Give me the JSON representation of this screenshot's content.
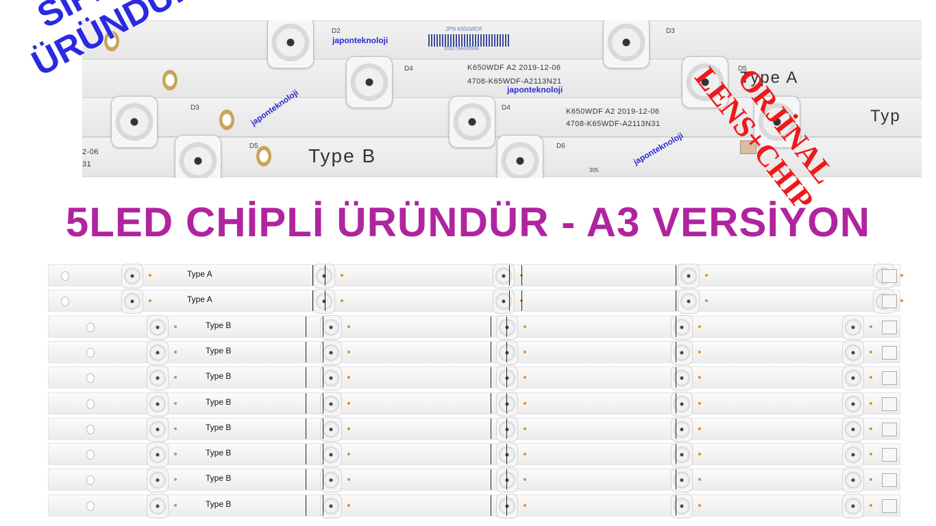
{
  "overlay": {
    "left_stamp": [
      "SIFIR",
      "ÜRÜNDÜR"
    ],
    "right_stamp": [
      "ORJİNAL",
      "LENS+CHIP"
    ],
    "colors": {
      "left_stamp": "#2a2ae0",
      "right_stamp": "#f01818",
      "headline": "#b0249f"
    }
  },
  "headline": "5LED CHİPLİ ÜRÜNDÜR - A3 VERSİYON",
  "photo": {
    "watermark": "japonteknoloji",
    "label_top": "JPN K650WDF",
    "barcode_number": "5552798435566",
    "print_a_line1": "K650WDF  A2  2019-12-06",
    "print_a_line2": "4708-K65WDF-A2113N21",
    "print_b_line1": "K650WDF  A2  2019-12-06",
    "print_b_line2": "4708-K65WDF-A2113N31",
    "type_b": "Type B",
    "partial_type_a": "Type A",
    "partial_typ": "Typ",
    "partial_date": "2-06",
    "partial_code": "31",
    "board_num": "305",
    "leds": [
      "D2",
      "D3",
      "D4",
      "D5",
      "D3",
      "D4",
      "D5",
      "D6"
    ]
  },
  "strips": [
    {
      "type": "Type A"
    },
    {
      "type": "Type A"
    },
    {
      "type": "Type B"
    },
    {
      "type": "Type B"
    },
    {
      "type": "Type B"
    },
    {
      "type": "Type B"
    },
    {
      "type": "Type B"
    },
    {
      "type": "Type B"
    },
    {
      "type": "Type B"
    },
    {
      "type": "Type B"
    }
  ]
}
